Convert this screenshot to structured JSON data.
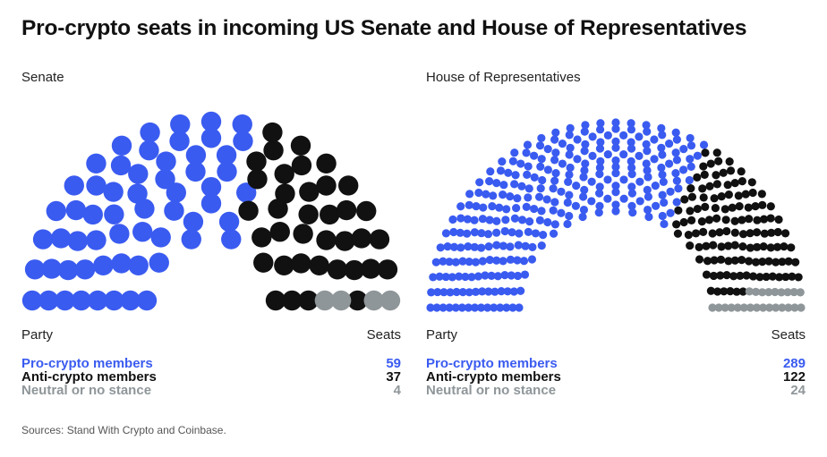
{
  "title": "Pro-crypto seats in incoming US Senate and House of Representatives",
  "source": "Sources: Stand With Crypto and Coinbase.",
  "colors": {
    "pro": "#3a5bf0",
    "anti": "#111111",
    "neutral": "#8f9699"
  },
  "chart_data": [
    {
      "type": "parliament",
      "title": "Senate",
      "party_header": "Party",
      "seats_header": "Seats",
      "series": [
        {
          "name": "Pro-crypto members",
          "value": 59,
          "color": "#3a5bf0"
        },
        {
          "name": "Anti-crypto members",
          "value": 37,
          "color": "#111111"
        },
        {
          "name": "Neutral or no stance",
          "value": 4,
          "color": "#8f9699"
        }
      ]
    },
    {
      "type": "parliament",
      "title": "House of Representatives",
      "party_header": "Party",
      "seats_header": "Seats",
      "series": [
        {
          "name": "Pro-crypto members",
          "value": 289,
          "color": "#3a5bf0"
        },
        {
          "name": "Anti-crypto members",
          "value": 122,
          "color": "#111111"
        },
        {
          "name": "Neutral or no stance",
          "value": 24,
          "color": "#8f9699"
        }
      ]
    }
  ]
}
